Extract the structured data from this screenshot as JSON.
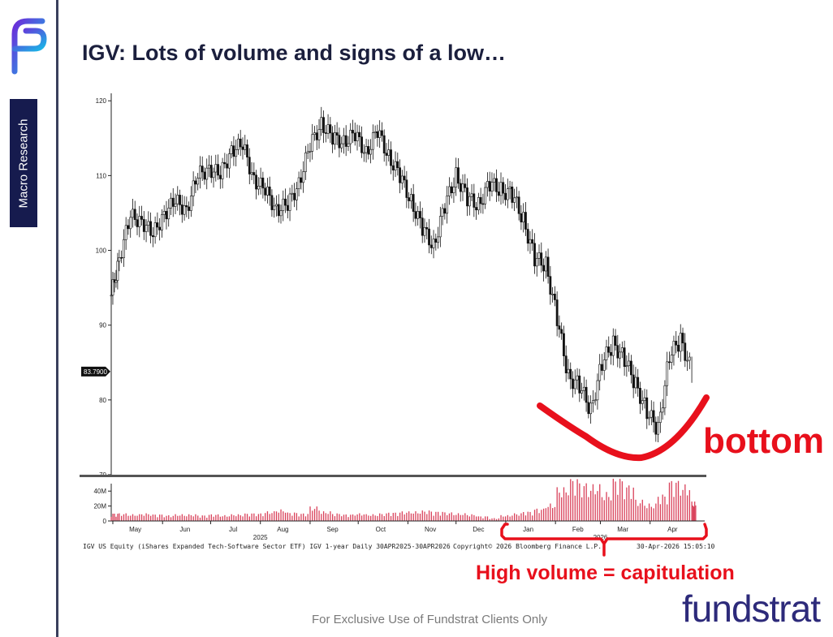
{
  "header": {
    "title": "IGV: Lots of volume and signs of a low…"
  },
  "sidebar": {
    "tab_label": "Macro Research"
  },
  "footer": {
    "disclaimer": "For Exclusive Use of Fundstrat Clients Only",
    "brand": "fundstrat"
  },
  "annotations": {
    "bottom_label": "bottom",
    "volume_label": "High volume = capitulation",
    "color": "#e8101c"
  },
  "chart_data": {
    "type": "candlestick",
    "title": "",
    "ylim": [
      70,
      121
    ],
    "yticks": [
      70,
      80,
      90,
      100,
      110,
      120
    ],
    "last_price_label": "83.7900",
    "last_price": 83.79,
    "month_labels": [
      "May",
      "Jun",
      "Jul",
      "Aug",
      "Sep",
      "Oct",
      "Nov",
      "Dec",
      "Jan",
      "Feb",
      "Mar",
      "Apr"
    ],
    "year_labels": [
      "2025",
      "2026"
    ],
    "volume_ticks": [
      "40M",
      "20M",
      "0"
    ],
    "volume_ylim": [
      0,
      50
    ],
    "source_left": "IGV US Equity (iShares Expanded Tech-Software Sector ETF) IGV 1-year Daily 30APR2025-30APR2026",
    "source_right": "Copyright© 2026 Bloomberg Finance L.P.",
    "timestamp": "30-Apr-2026 15:05:10",
    "price_series": [
      {
        "date": "2025-04-30",
        "close": 94
      },
      {
        "date": "2025-05-05",
        "close": 99
      },
      {
        "date": "2025-05-12",
        "close": 104.5
      },
      {
        "date": "2025-05-19",
        "close": 104
      },
      {
        "date": "2025-05-26",
        "close": 102
      },
      {
        "date": "2025-06-02",
        "close": 105
      },
      {
        "date": "2025-06-09",
        "close": 106.5
      },
      {
        "date": "2025-06-16",
        "close": 105.5
      },
      {
        "date": "2025-06-23",
        "close": 110
      },
      {
        "date": "2025-06-30",
        "close": 111
      },
      {
        "date": "2025-07-07",
        "close": 110
      },
      {
        "date": "2025-07-14",
        "close": 113.5
      },
      {
        "date": "2025-07-21",
        "close": 114
      },
      {
        "date": "2025-07-28",
        "close": 109.5
      },
      {
        "date": "2025-08-04",
        "close": 108
      },
      {
        "date": "2025-08-11",
        "close": 105.5
      },
      {
        "date": "2025-08-18",
        "close": 106
      },
      {
        "date": "2025-08-25",
        "close": 109
      },
      {
        "date": "2025-09-01",
        "close": 114
      },
      {
        "date": "2025-09-08",
        "close": 117
      },
      {
        "date": "2025-09-15",
        "close": 115
      },
      {
        "date": "2025-09-22",
        "close": 114.5
      },
      {
        "date": "2025-09-29",
        "close": 115.5
      },
      {
        "date": "2025-10-06",
        "close": 113
      },
      {
        "date": "2025-10-13",
        "close": 116
      },
      {
        "date": "2025-10-20",
        "close": 112.5
      },
      {
        "date": "2025-10-27",
        "close": 110
      },
      {
        "date": "2025-11-03",
        "close": 106.5
      },
      {
        "date": "2025-11-10",
        "close": 103
      },
      {
        "date": "2025-11-17",
        "close": 100.5
      },
      {
        "date": "2025-11-24",
        "close": 106
      },
      {
        "date": "2025-12-01",
        "close": 110
      },
      {
        "date": "2025-12-08",
        "close": 107
      },
      {
        "date": "2025-12-15",
        "close": 106
      },
      {
        "date": "2025-12-22",
        "close": 109
      },
      {
        "date": "2025-12-29",
        "close": 108
      },
      {
        "date": "2026-01-05",
        "close": 107.5
      },
      {
        "date": "2026-01-12",
        "close": 104
      },
      {
        "date": "2026-01-19",
        "close": 99
      },
      {
        "date": "2026-01-26",
        "close": 98
      },
      {
        "date": "2026-02-02",
        "close": 91
      },
      {
        "date": "2026-02-09",
        "close": 83
      },
      {
        "date": "2026-02-16",
        "close": 82
      },
      {
        "date": "2026-02-23",
        "close": 78.5
      },
      {
        "date": "2026-03-02",
        "close": 85
      },
      {
        "date": "2026-03-09",
        "close": 87.5
      },
      {
        "date": "2026-03-16",
        "close": 85.5
      },
      {
        "date": "2026-03-23",
        "close": 82
      },
      {
        "date": "2026-03-30",
        "close": 78.5
      },
      {
        "date": "2026-04-06",
        "close": 76
      },
      {
        "date": "2026-04-13",
        "close": 86
      },
      {
        "date": "2026-04-20",
        "close": 88
      },
      {
        "date": "2026-04-27",
        "close": 83.79
      }
    ],
    "volume_series_m": [
      8,
      8,
      7,
      8,
      7,
      6,
      7,
      7,
      6,
      7,
      6,
      7,
      8,
      8,
      10,
      12,
      9,
      8,
      15,
      10,
      8,
      7,
      8,
      7,
      8,
      9,
      10,
      10,
      11,
      10,
      9,
      8,
      7,
      5,
      3,
      6,
      8,
      10,
      13,
      18,
      35,
      45,
      40,
      38,
      30,
      45,
      38,
      22,
      18,
      28,
      43,
      38,
      20
    ]
  }
}
